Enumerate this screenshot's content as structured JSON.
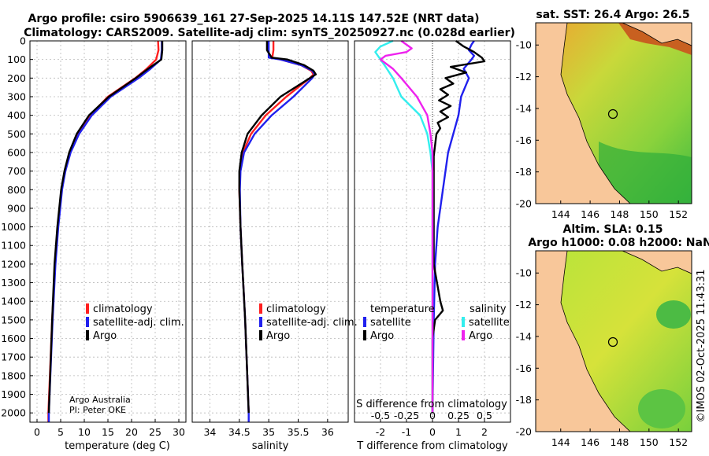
{
  "header": {
    "title_line1": "Argo profile: csiro 5906639_161 27-Sep-2025 14.11S 147.52E (NRT data)",
    "title_line2": "Climatology: CARS2009. Satellite-adj clim: synTS_20250927.nc (0.028d earlier)"
  },
  "colors": {
    "climatology": "#ff2020",
    "satellite": "#2020ee",
    "argo": "#000000",
    "sat_diff": "#33eeee",
    "argo_diff": "#ee22ee",
    "land": "#f8c79a"
  },
  "chart_data": [
    {
      "type": "line",
      "name": "temperature",
      "xlabel": "temperature (deg C)",
      "ylabel": "",
      "xlim": [
        -1.5,
        31.5
      ],
      "ylim": [
        2050,
        0
      ],
      "xticks": [
        0,
        5,
        10,
        15,
        20,
        25,
        30
      ],
      "yticks": [
        0,
        100,
        200,
        300,
        400,
        500,
        600,
        700,
        800,
        900,
        1000,
        1100,
        1200,
        1300,
        1400,
        1500,
        1600,
        1700,
        1800,
        1900,
        2000
      ],
      "legend": [
        "climatology",
        "satellite-adj. clim.",
        "Argo"
      ],
      "footnote": [
        "Argo Australia",
        "PI: Peter OKE"
      ],
      "series": [
        {
          "name": "climatology",
          "color": "#ff2020",
          "depth": [
            0,
            50,
            100,
            150,
            200,
            300,
            400,
            500,
            600,
            700,
            800,
            1000,
            1200,
            1500,
            2000,
            2050
          ],
          "values": [
            25.6,
            25.7,
            25.2,
            23.2,
            20.8,
            15.0,
            11.2,
            8.6,
            6.9,
            5.9,
            5.2,
            4.4,
            3.8,
            3.2,
            2.4,
            2.4
          ]
        },
        {
          "name": "satellite-adj. clim.",
          "color": "#2020ee",
          "depth": [
            0,
            50,
            100,
            150,
            200,
            300,
            400,
            500,
            600,
            700,
            800,
            1000,
            1200,
            1500,
            2000,
            2050
          ],
          "values": [
            26.4,
            26.4,
            26.2,
            24.0,
            21.5,
            15.6,
            11.6,
            8.9,
            7.1,
            6.0,
            5.3,
            4.5,
            3.9,
            3.3,
            2.5,
            2.5
          ]
        },
        {
          "name": "Argo",
          "color": "#000000",
          "depth": [
            0,
            50,
            100,
            150,
            200,
            300,
            400,
            500,
            600,
            700,
            800,
            1000,
            1200,
            1500,
            2000
          ],
          "values": [
            26.5,
            26.5,
            26.3,
            23.5,
            20.9,
            15.2,
            11.0,
            8.4,
            6.8,
            5.8,
            5.1,
            4.3,
            3.7,
            3.2,
            2.5
          ]
        }
      ]
    },
    {
      "type": "line",
      "name": "salinity",
      "xlabel": "salinity",
      "xlim": [
        33.7,
        36.35
      ],
      "ylim": [
        2050,
        0
      ],
      "xticks": [
        34,
        34.5,
        35,
        35.5,
        36
      ],
      "legend": [
        "climatology",
        "satellite-adj. clim.",
        "Argo"
      ],
      "series": [
        {
          "name": "climatology",
          "color": "#ff2020",
          "depth": [
            0,
            50,
            90,
            100,
            130,
            160,
            180,
            200,
            300,
            400,
            500,
            600,
            700,
            800,
            1000,
            1200,
            1500,
            2000
          ],
          "values": [
            35.08,
            35.08,
            35.06,
            35.2,
            35.55,
            35.72,
            35.76,
            35.7,
            35.3,
            34.95,
            34.7,
            34.56,
            34.51,
            34.5,
            34.52,
            34.55,
            34.6,
            34.66
          ]
        },
        {
          "name": "satellite-adj. clim.",
          "color": "#2020ee",
          "depth": [
            0,
            50,
            90,
            100,
            130,
            160,
            180,
            200,
            300,
            400,
            500,
            600,
            700,
            800,
            1000,
            1200,
            1500,
            2000,
            2050
          ],
          "values": [
            35.0,
            35.0,
            35.0,
            35.2,
            35.55,
            35.74,
            35.78,
            35.74,
            35.42,
            35.05,
            34.76,
            34.58,
            34.52,
            34.51,
            34.52,
            34.55,
            34.6,
            34.66,
            34.66
          ]
        },
        {
          "name": "Argo",
          "color": "#000000",
          "depth": [
            0,
            50,
            90,
            100,
            130,
            160,
            180,
            200,
            300,
            400,
            500,
            600,
            700,
            800,
            1000,
            1200,
            1500,
            2000
          ],
          "values": [
            34.97,
            34.97,
            35.05,
            35.32,
            35.6,
            35.76,
            35.8,
            35.7,
            35.2,
            34.88,
            34.64,
            34.54,
            34.5,
            34.5,
            34.52,
            34.55,
            34.6,
            34.66
          ]
        }
      ]
    },
    {
      "type": "line",
      "name": "difference",
      "xlabel": "T difference from climatology",
      "xlabel_top": "S difference from climatology",
      "xlim": [
        -3.0,
        3.0
      ],
      "ylim": [
        2050,
        0
      ],
      "xticks": [
        -2,
        -1,
        0,
        1,
        2
      ],
      "sticks": [
        -0.5,
        -0.25,
        0,
        0.25,
        0.5
      ],
      "legend_temperature_title": "temperature",
      "legend_salinity_title": "salinity",
      "legend_temperature": [
        "satellite",
        "Argo"
      ],
      "legend_salinity": [
        "satellite",
        "Argo"
      ],
      "series": [
        {
          "name": "T satellite",
          "color": "#2020ee",
          "depth": [
            0,
            20,
            50,
            80,
            100,
            150,
            200,
            300,
            400,
            500,
            600,
            700,
            800,
            900,
            1000,
            1200,
            1500,
            2000
          ],
          "values": [
            1.6,
            1.5,
            1.4,
            1.6,
            1.5,
            1.2,
            1.4,
            1.1,
            1.0,
            0.8,
            0.6,
            0.5,
            0.4,
            0.3,
            0.2,
            0.1,
            0.05,
            0.0
          ]
        },
        {
          "name": "T Argo",
          "color": "#000000",
          "depth": [
            0,
            30,
            60,
            90,
            110,
            140,
            170,
            200,
            230,
            260,
            290,
            320,
            350,
            380,
            410,
            440,
            470,
            500,
            560,
            620,
            700,
            800,
            1000,
            1200,
            1400,
            1450,
            1500,
            1600,
            2000
          ],
          "values": [
            0.9,
            1.2,
            1.6,
            1.9,
            2.0,
            0.7,
            1.3,
            0.5,
            0.8,
            0.3,
            0.6,
            0.25,
            0.7,
            0.3,
            0.6,
            0.2,
            0.3,
            0.15,
            0.1,
            0.05,
            0.05,
            0.05,
            0.05,
            0.05,
            0.3,
            0.4,
            0.1,
            0.0,
            0.0
          ]
        },
        {
          "name": "S satellite",
          "color": "#33eeee",
          "depth": [
            0,
            30,
            60,
            100,
            140,
            200,
            300,
            400,
            500,
            600,
            700,
            800,
            1000,
            1500,
            2000
          ],
          "values": [
            -0.38,
            -0.5,
            -0.55,
            -0.5,
            -0.45,
            -0.38,
            -0.3,
            -0.12,
            -0.05,
            -0.02,
            0.0,
            0.0,
            0.0,
            0.0,
            0.0
          ]
        },
        {
          "name": "S Argo",
          "color": "#ee22ee",
          "depth": [
            0,
            40,
            60,
            80,
            100,
            150,
            200,
            300,
            400,
            500,
            600,
            700,
            800,
            1000,
            1500,
            2000
          ],
          "values": [
            -0.3,
            -0.2,
            -0.25,
            -0.45,
            -0.5,
            -0.38,
            -0.3,
            -0.15,
            -0.05,
            -0.02,
            0.0,
            0.0,
            0.0,
            0.0,
            0.0,
            0.0
          ]
        }
      ]
    },
    {
      "type": "heatmap",
      "name": "sst-map",
      "title": "sat. SST: 26.4 Argo: 26.5",
      "xticks": [
        144,
        146,
        148,
        150,
        152
      ],
      "yticks": [
        -10,
        -12,
        -14,
        -16,
        -18,
        -20
      ],
      "xlim": [
        142.3,
        152.9
      ],
      "ylim": [
        -20,
        -8.6
      ],
      "float_position": {
        "lon": 147.52,
        "lat": -14.11
      }
    },
    {
      "type": "heatmap",
      "name": "sla-map",
      "title": "Altim. SLA: 0.15",
      "subtitle": "Argo h1000: 0.08 h2000: NaN",
      "xticks": [
        144,
        146,
        148,
        150,
        152
      ],
      "yticks": [
        -10,
        -12,
        -14,
        -16,
        -18,
        -20
      ],
      "xlim": [
        142.3,
        152.9
      ],
      "ylim": [
        -20,
        -8.6
      ],
      "float_position": {
        "lon": 147.52,
        "lat": -14.11
      }
    }
  ],
  "credit": "©IMOS 02-Oct-2025 11:43:31"
}
